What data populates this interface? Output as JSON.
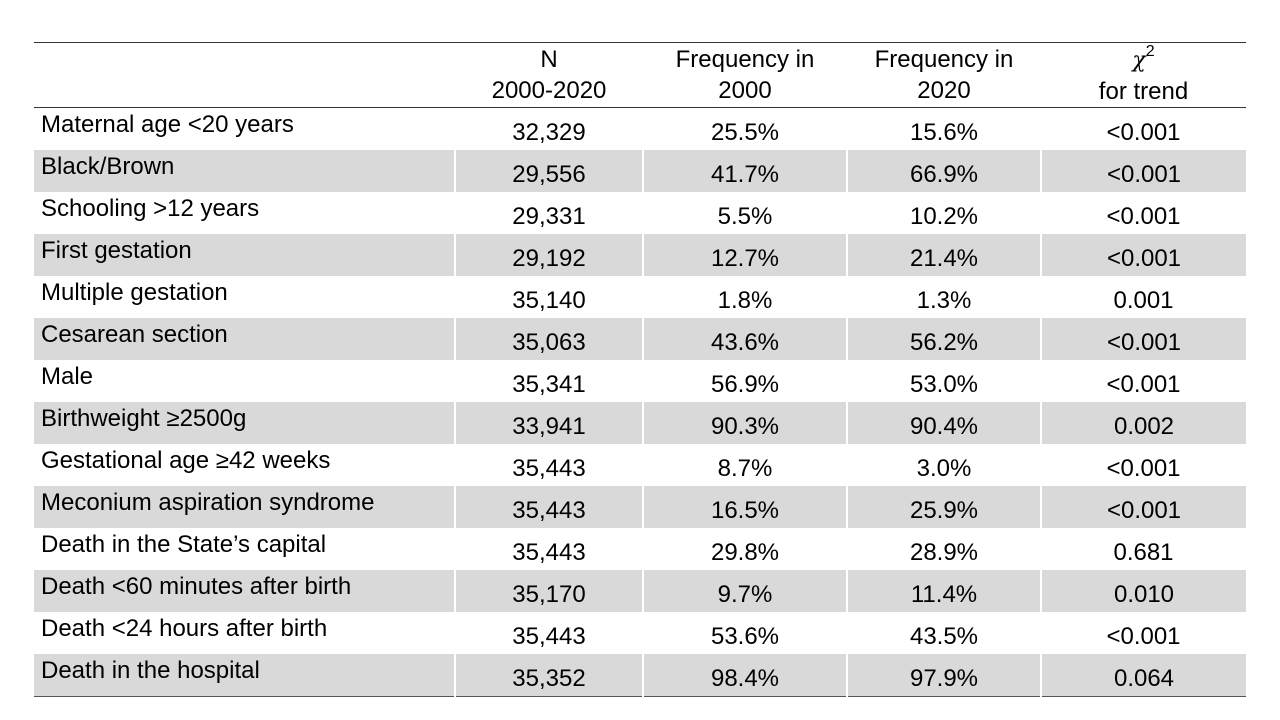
{
  "table": {
    "headers": {
      "label": "",
      "n_line1": "N",
      "n_line2": "2000-2020",
      "f2000_line1": "Frequency in",
      "f2000_line2": "2000",
      "f2020_line1": "Frequency in",
      "f2020_line2": "2020",
      "chi_symbol": "χ",
      "chi_sup": "2",
      "chi_line2": "for trend"
    },
    "rows": [
      {
        "label": "Maternal age <20 years",
        "n": "32,329",
        "f2000": "25.5%",
        "f2020": "15.6%",
        "p": "<0.001"
      },
      {
        "label": "Black/Brown",
        "n": "29,556",
        "f2000": "41.7%",
        "f2020": "66.9%",
        "p": "<0.001"
      },
      {
        "label": "Schooling >12 years",
        "n": "29,331",
        "f2000": "5.5%",
        "f2020": "10.2%",
        "p": "<0.001"
      },
      {
        "label": "First gestation",
        "n": "29,192",
        "f2000": "12.7%",
        "f2020": "21.4%",
        "p": "<0.001"
      },
      {
        "label": "Multiple gestation",
        "n": "35,140",
        "f2000": "1.8%",
        "f2020": "1.3%",
        "p": "0.001"
      },
      {
        "label": "Cesarean section",
        "n": "35,063",
        "f2000": "43.6%",
        "f2020": "56.2%",
        "p": "<0.001"
      },
      {
        "label": "Male",
        "n": "35,341",
        "f2000": "56.9%",
        "f2020": "53.0%",
        "p": "<0.001"
      },
      {
        "label": "Birthweight ≥2500g",
        "n": "33,941",
        "f2000": "90.3%",
        "f2020": "90.4%",
        "p": "0.002"
      },
      {
        "label": "Gestational age ≥42 weeks",
        "n": "35,443",
        "f2000": "8.7%",
        "f2020": "3.0%",
        "p": "<0.001"
      },
      {
        "label": "Meconium aspiration syndrome",
        "n": "35,443",
        "f2000": "16.5%",
        "f2020": "25.9%",
        "p": "<0.001"
      },
      {
        "label": "Death in the State’s capital",
        "n": "35,443",
        "f2000": "29.8%",
        "f2020": "28.9%",
        "p": "0.681"
      },
      {
        "label": "Death <60 minutes after birth",
        "n": "35,170",
        "f2000": "9.7%",
        "f2020": "11.4%",
        "p": "0.010"
      },
      {
        "label": "Death <24 hours after birth",
        "n": "35,443",
        "f2000": "53.6%",
        "f2020": "43.5%",
        "p": "<0.001"
      },
      {
        "label": "Death in the hospital",
        "n": "35,352",
        "f2000": "98.4%",
        "f2020": "97.9%",
        "p": "0.064"
      }
    ],
    "colors": {
      "shaded_row": "#d9d9d9",
      "plain_row": "#ffffff",
      "rule": "#333333"
    }
  }
}
